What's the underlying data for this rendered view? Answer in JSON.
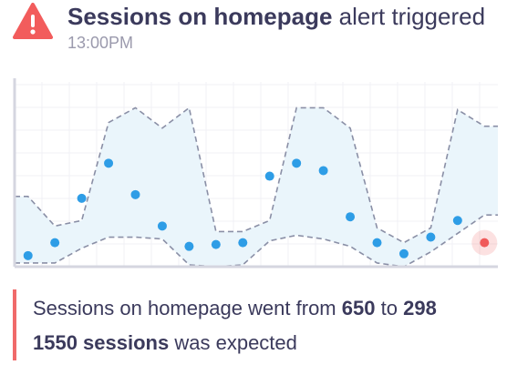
{
  "header": {
    "icon": "warning-icon",
    "icon_color": "#f25c5c",
    "title_strong": "Sessions on homepage",
    "title_rest": "alert triggered",
    "time": "13:00PM"
  },
  "chart_data": {
    "type": "scatter",
    "title": "",
    "xlabel": "",
    "ylabel": "",
    "grid": true,
    "ylim": [
      0,
      100
    ],
    "x": [
      1,
      2,
      3,
      4,
      5,
      6,
      7,
      8,
      9,
      10,
      11,
      12,
      13,
      14,
      15,
      16,
      17,
      18
    ],
    "points": [
      6,
      13,
      37,
      56,
      39,
      22,
      11,
      12,
      13,
      49,
      56,
      52,
      27,
      13,
      7,
      16,
      25,
      13
    ],
    "anomaly_index": 17,
    "band": {
      "x": [
        1,
        2,
        3,
        4,
        5,
        6,
        7,
        8,
        9,
        10,
        11,
        12,
        13,
        14,
        15,
        16,
        17,
        18
      ],
      "upper": [
        38,
        22,
        25,
        78,
        86,
        75,
        86,
        19,
        19,
        25,
        86,
        86,
        75,
        21,
        13,
        21,
        85,
        76
      ],
      "lower": [
        2,
        2,
        10,
        16,
        16,
        15,
        1,
        0,
        1,
        14,
        17,
        15,
        11,
        2,
        0,
        8,
        18,
        28
      ]
    },
    "colors": {
      "point": "#2e9de6",
      "anomaly": "#f05a5a",
      "band_fill": "#eaf5fb",
      "band_line": "#8a8fa6",
      "axis": "#d5d6e0",
      "grid": "#f0f1f5"
    }
  },
  "summary": {
    "prefix": "Sessions on homepage went from",
    "from_value": "650",
    "connector": "to",
    "to_value": "298",
    "expected_value": "1550 sessions",
    "expected_suffix": "was expected",
    "bar_color": "#f06a6a"
  }
}
